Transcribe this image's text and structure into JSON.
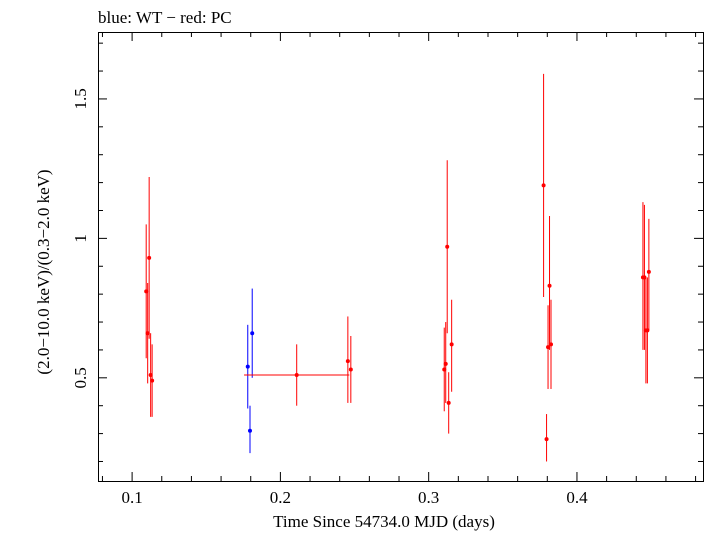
{
  "chart_data": {
    "type": "scatter",
    "title": "blue: WT − red: PC",
    "xlabel": "Time Since 54734.0 MJD (days)",
    "ylabel": "(2.0−10.0 keV)/(0.3−2.0 keV)",
    "xlim": [
      0.077,
      0.485
    ],
    "ylim": [
      0.13,
      1.74
    ],
    "xticks": [
      0.1,
      0.2,
      0.3,
      0.4
    ],
    "xtick_labels": [
      "0.1",
      "0.2",
      "0.3",
      "0.4"
    ],
    "yticks": [
      0.5,
      1.0,
      1.5
    ],
    "ytick_labels": [
      "0.5",
      "1",
      "1.5"
    ],
    "grid": false,
    "legend": "none",
    "series": [
      {
        "name": "WT",
        "color": "#0000ff",
        "points": [
          {
            "x": 0.178,
            "y": 0.54,
            "ylo": 0.39,
            "yhi": 0.69,
            "xerr": 0.0005
          },
          {
            "x": 0.1795,
            "y": 0.31,
            "ylo": 0.23,
            "yhi": 0.4,
            "xerr": 0.0005
          },
          {
            "x": 0.181,
            "y": 0.66,
            "ylo": 0.5,
            "yhi": 0.82,
            "xerr": 0.0005
          }
        ]
      },
      {
        "name": "PC",
        "color": "#ff0000",
        "points": [
          {
            "x": 0.1095,
            "y": 0.81,
            "ylo": 0.57,
            "yhi": 1.05,
            "xerr": 0.0005
          },
          {
            "x": 0.1105,
            "y": 0.66,
            "ylo": 0.48,
            "yhi": 0.84,
            "xerr": 0.0005
          },
          {
            "x": 0.1115,
            "y": 0.93,
            "ylo": 0.64,
            "yhi": 1.22,
            "xerr": 0.0005
          },
          {
            "x": 0.1125,
            "y": 0.51,
            "ylo": 0.36,
            "yhi": 0.66,
            "xerr": 0.0005
          },
          {
            "x": 0.1135,
            "y": 0.49,
            "ylo": 0.36,
            "yhi": 0.62,
            "xerr": 0.0005
          },
          {
            "x": 0.211,
            "y": 0.51,
            "ylo": 0.4,
            "yhi": 0.62,
            "xerr": 0.0355
          },
          {
            "x": 0.2455,
            "y": 0.56,
            "ylo": 0.41,
            "yhi": 0.72,
            "xerr": 0.0005
          },
          {
            "x": 0.2475,
            "y": 0.53,
            "ylo": 0.41,
            "yhi": 0.65,
            "xerr": 0.0005
          },
          {
            "x": 0.3105,
            "y": 0.53,
            "ylo": 0.38,
            "yhi": 0.68,
            "xerr": 0.0005
          },
          {
            "x": 0.3115,
            "y": 0.55,
            "ylo": 0.41,
            "yhi": 0.7,
            "xerr": 0.0005
          },
          {
            "x": 0.3125,
            "y": 0.97,
            "ylo": 0.66,
            "yhi": 1.28,
            "xerr": 0.0005
          },
          {
            "x": 0.3135,
            "y": 0.41,
            "ylo": 0.3,
            "yhi": 0.52,
            "xerr": 0.0005
          },
          {
            "x": 0.3155,
            "y": 0.62,
            "ylo": 0.45,
            "yhi": 0.78,
            "xerr": 0.0005
          },
          {
            "x": 0.3775,
            "y": 1.19,
            "ylo": 0.79,
            "yhi": 1.59,
            "xerr": 0.0005
          },
          {
            "x": 0.3795,
            "y": 0.28,
            "ylo": 0.2,
            "yhi": 0.37,
            "xerr": 0.0005
          },
          {
            "x": 0.3805,
            "y": 0.61,
            "ylo": 0.46,
            "yhi": 0.76,
            "xerr": 0.0005
          },
          {
            "x": 0.3815,
            "y": 0.83,
            "ylo": 0.6,
            "yhi": 1.08,
            "xerr": 0.0005
          },
          {
            "x": 0.3825,
            "y": 0.62,
            "ylo": 0.46,
            "yhi": 0.78,
            "xerr": 0.0005
          },
          {
            "x": 0.4445,
            "y": 0.86,
            "ylo": 0.6,
            "yhi": 1.13,
            "xerr": 0.0005
          },
          {
            "x": 0.4455,
            "y": 0.86,
            "ylo": 0.6,
            "yhi": 1.12,
            "xerr": 0.0005
          },
          {
            "x": 0.4465,
            "y": 0.67,
            "ylo": 0.48,
            "yhi": 0.86,
            "xerr": 0.0005
          },
          {
            "x": 0.4475,
            "y": 0.67,
            "ylo": 0.48,
            "yhi": 0.86,
            "xerr": 0.0005
          },
          {
            "x": 0.4485,
            "y": 0.88,
            "ylo": 0.67,
            "yhi": 1.07,
            "xerr": 0.0005
          }
        ]
      }
    ]
  }
}
